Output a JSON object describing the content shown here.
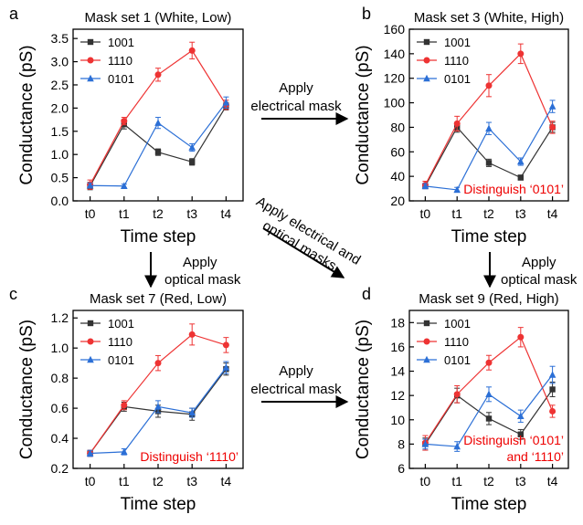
{
  "colors": {
    "1001": "#333333",
    "1110": "#ee3333",
    "0101": "#2b6fd6",
    "annotation": "#ee0000",
    "axis": "#000000",
    "frame_label_color": "#000000"
  },
  "arrows": {
    "top": [
      "Apply",
      "electrical mask"
    ],
    "bottom": [
      "Apply",
      "electrical mask"
    ],
    "left": [
      "Apply",
      "optical mask"
    ],
    "right": [
      "Apply",
      "optical mask"
    ],
    "diagonal": [
      "Apply electrical and",
      "optical masks"
    ]
  },
  "chart_data": [
    {
      "panel": "a",
      "type": "line",
      "title": "Mask set 1 (White, Low)",
      "xlabel": "Time step",
      "ylabel": "Conductance (pS)",
      "categories": [
        "t0",
        "t1",
        "t2",
        "t3",
        "t4"
      ],
      "ylim": [
        0,
        3.7
      ],
      "yticks": [
        0.0,
        0.5,
        1.0,
        1.5,
        2.0,
        2.5,
        3.0,
        3.5
      ],
      "ytick_labels": [
        "0.0",
        "0.5",
        "1.0",
        "1.5",
        "2.0",
        "2.5",
        "3.0",
        "3.5"
      ],
      "legend": "top-left",
      "annotation": "",
      "series": [
        {
          "name": "1001",
          "marker": "square",
          "values": [
            0.32,
            1.65,
            1.05,
            0.84,
            2.04
          ],
          "errors": [
            0.08,
            0.1,
            0.07,
            0.07,
            0.08
          ]
        },
        {
          "name": "1110",
          "marker": "circle",
          "values": [
            0.35,
            1.72,
            2.72,
            3.24,
            2.07
          ],
          "errors": [
            0.1,
            0.08,
            0.14,
            0.18,
            0.1
          ]
        },
        {
          "name": "0101",
          "marker": "triangle",
          "values": [
            0.33,
            0.32,
            1.68,
            1.15,
            2.12
          ],
          "errors": [
            0.05,
            0.04,
            0.12,
            0.08,
            0.12
          ]
        }
      ]
    },
    {
      "panel": "b",
      "type": "line",
      "title": "Mask set 3 (White, High)",
      "xlabel": "Time step",
      "ylabel": "Conductance (pS)",
      "categories": [
        "t0",
        "t1",
        "t2",
        "t3",
        "t4"
      ],
      "ylim": [
        20,
        160
      ],
      "yticks": [
        20,
        40,
        60,
        80,
        100,
        120,
        140,
        160
      ],
      "ytick_labels": [
        "20",
        "40",
        "60",
        "80",
        "100",
        "120",
        "140",
        "160"
      ],
      "legend": "top-left",
      "annotation": "Distinguish ‘0101’",
      "series": [
        {
          "name": "1001",
          "marker": "square",
          "values": [
            32,
            80,
            51,
            39,
            80
          ],
          "errors": [
            2,
            4,
            3,
            2,
            4
          ]
        },
        {
          "name": "1110",
          "marker": "circle",
          "values": [
            33,
            83,
            114,
            140,
            80
          ],
          "errors": [
            3,
            6,
            9,
            8,
            5
          ]
        },
        {
          "name": "0101",
          "marker": "triangle",
          "values": [
            32,
            29,
            79,
            52,
            97
          ],
          "errors": [
            2,
            2,
            5,
            3,
            5
          ]
        }
      ]
    },
    {
      "panel": "c",
      "type": "line",
      "title": "Mask set 7 (Red, Low)",
      "xlabel": "Time step",
      "ylabel": "Conductance (pS)",
      "categories": [
        "t0",
        "t1",
        "t2",
        "t3",
        "t4"
      ],
      "ylim": [
        0.2,
        1.25
      ],
      "yticks": [
        0.2,
        0.4,
        0.6,
        0.8,
        1.0,
        1.2
      ],
      "ytick_labels": [
        "0.2",
        "0.4",
        "0.6",
        "0.8",
        "1.0",
        "1.2"
      ],
      "legend": "top-left",
      "annotation": "Distinguish ‘1110’",
      "series": [
        {
          "name": "1001",
          "marker": "square",
          "values": [
            0.3,
            0.61,
            0.58,
            0.56,
            0.86
          ],
          "errors": [
            0.02,
            0.03,
            0.04,
            0.04,
            0.04
          ]
        },
        {
          "name": "1110",
          "marker": "circle",
          "values": [
            0.3,
            0.62,
            0.9,
            1.09,
            1.02
          ],
          "errors": [
            0.02,
            0.03,
            0.05,
            0.07,
            0.05
          ]
        },
        {
          "name": "0101",
          "marker": "triangle",
          "values": [
            0.3,
            0.31,
            0.61,
            0.57,
            0.87
          ],
          "errors": [
            0.02,
            0.02,
            0.04,
            0.03,
            0.04
          ]
        }
      ]
    },
    {
      "panel": "d",
      "type": "line",
      "title": "Mask set 9 (Red, High)",
      "xlabel": "Time step",
      "ylabel": "Conductance (pS)",
      "categories": [
        "t0",
        "t1",
        "t2",
        "t3",
        "t4"
      ],
      "ylim": [
        6,
        19
      ],
      "yticks": [
        6,
        8,
        10,
        12,
        14,
        16,
        18
      ],
      "ytick_labels": [
        "6",
        "8",
        "10",
        "12",
        "14",
        "16",
        "18"
      ],
      "legend": "top-left",
      "annotation": "Distinguish ‘0101’\nand ‘1110’",
      "series": [
        {
          "name": "1001",
          "marker": "square",
          "values": [
            8.0,
            12.0,
            10.1,
            8.8,
            12.5
          ],
          "errors": [
            0.5,
            0.6,
            0.5,
            0.4,
            0.6
          ]
        },
        {
          "name": "1110",
          "marker": "circle",
          "values": [
            8.1,
            12.1,
            14.7,
            16.8,
            10.7
          ],
          "errors": [
            0.6,
            0.7,
            0.6,
            0.8,
            0.5
          ]
        },
        {
          "name": "0101",
          "marker": "triangle",
          "values": [
            8.0,
            7.8,
            12.1,
            10.3,
            13.7
          ],
          "errors": [
            0.4,
            0.4,
            0.6,
            0.5,
            0.7
          ]
        }
      ]
    }
  ]
}
